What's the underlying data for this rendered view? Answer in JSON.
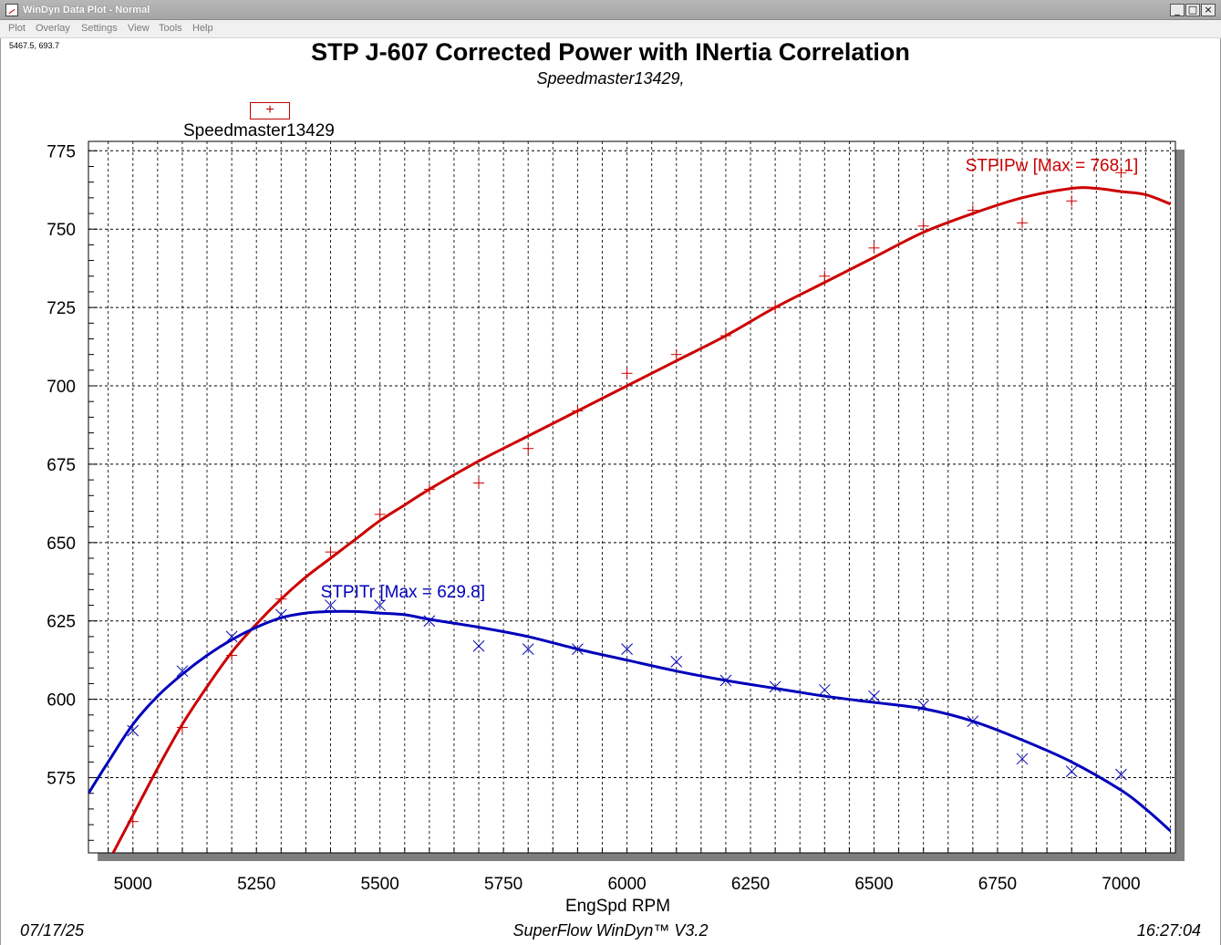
{
  "window": {
    "title": "WinDyn Data Plot - Normal"
  },
  "menu": {
    "items": [
      "Plot",
      "Overlay",
      "Settings",
      "View",
      "Tools",
      "Help"
    ]
  },
  "cursor_readout": "5467.5, 693.7",
  "legend": {
    "label": "Speedmaster13429"
  },
  "footer": {
    "date": "07/17/25",
    "app": "SuperFlow WinDyn™ V3.2",
    "time": "16:27:04"
  },
  "colors": {
    "power": "#cc0000",
    "torque": "#0000bb",
    "grid": "#000000",
    "shadow": "#7f7f7f"
  },
  "chart_data": {
    "type": "line",
    "title": "STP J-607 Corrected Power with INertia Correlation",
    "subtitle": "Speedmaster13429,",
    "xlabel": "EngSpd RPM",
    "xlim": [
      4910,
      7110
    ],
    "ylim": [
      551,
      778
    ],
    "x_ticks": [
      5000,
      5250,
      5500,
      5750,
      6000,
      6250,
      6500,
      6750,
      7000
    ],
    "y_ticks": [
      575,
      600,
      625,
      650,
      675,
      700,
      725,
      750,
      775
    ],
    "grid": true,
    "series": [
      {
        "name": "STPIPw",
        "label": "STPIPw [Max = 768.1]",
        "color": "#cc0000",
        "marker": "+",
        "curve_x": [
          4960,
          5000,
          5050,
          5100,
          5150,
          5200,
          5250,
          5300,
          5350,
          5400,
          5450,
          5500,
          5550,
          5600,
          5700,
          5800,
          5900,
          6000,
          6100,
          6200,
          6300,
          6400,
          6500,
          6600,
          6700,
          6800,
          6900,
          6950,
          7000,
          7050,
          7100
        ],
        "curve_y": [
          551,
          563,
          578,
          592,
          604,
          615,
          624,
          632,
          639,
          645,
          651,
          657,
          662,
          667,
          676,
          684,
          692,
          700,
          708,
          716,
          725,
          733,
          741,
          749,
          755,
          760,
          763,
          763,
          762,
          761,
          758
        ],
        "points_x": [
          5000,
          5100,
          5200,
          5300,
          5400,
          5500,
          5600,
          5700,
          5800,
          5900,
          6000,
          6100,
          6200,
          6300,
          6400,
          6500,
          6600,
          6700,
          6800,
          6900,
          7000
        ],
        "points_y": [
          561,
          591,
          614,
          632,
          647,
          659,
          667,
          669,
          680,
          692,
          704,
          710,
          716,
          725,
          735,
          744,
          751,
          756,
          752,
          759,
          768
        ]
      },
      {
        "name": "STPITr",
        "label": "STPITr [Max = 629.8]",
        "color": "#0000bb",
        "marker": "x",
        "curve_x": [
          4910,
          4950,
          5000,
          5050,
          5100,
          5150,
          5200,
          5250,
          5300,
          5350,
          5400,
          5450,
          5500,
          5550,
          5600,
          5700,
          5800,
          5900,
          6000,
          6100,
          6200,
          6300,
          6400,
          6500,
          6600,
          6700,
          6800,
          6900,
          7000,
          7050,
          7100
        ],
        "curve_y": [
          570,
          580,
          592,
          601,
          608,
          614,
          619,
          623,
          626,
          627.5,
          628,
          628,
          627.5,
          627,
          625.5,
          623,
          620,
          616,
          612.5,
          609,
          606,
          603.5,
          601,
          599,
          597,
          593,
          587,
          580,
          571,
          565,
          558
        ],
        "points_x": [
          5000,
          5100,
          5200,
          5300,
          5400,
          5500,
          5600,
          5700,
          5800,
          5900,
          6000,
          6100,
          6200,
          6300,
          6400,
          6500,
          6600,
          6700,
          6800,
          6900,
          7000
        ],
        "points_y": [
          590,
          609,
          620,
          627,
          630,
          630,
          625,
          617,
          616,
          616,
          616,
          612,
          606,
          604,
          603,
          601,
          598,
          593,
          581,
          577,
          576
        ]
      }
    ]
  }
}
